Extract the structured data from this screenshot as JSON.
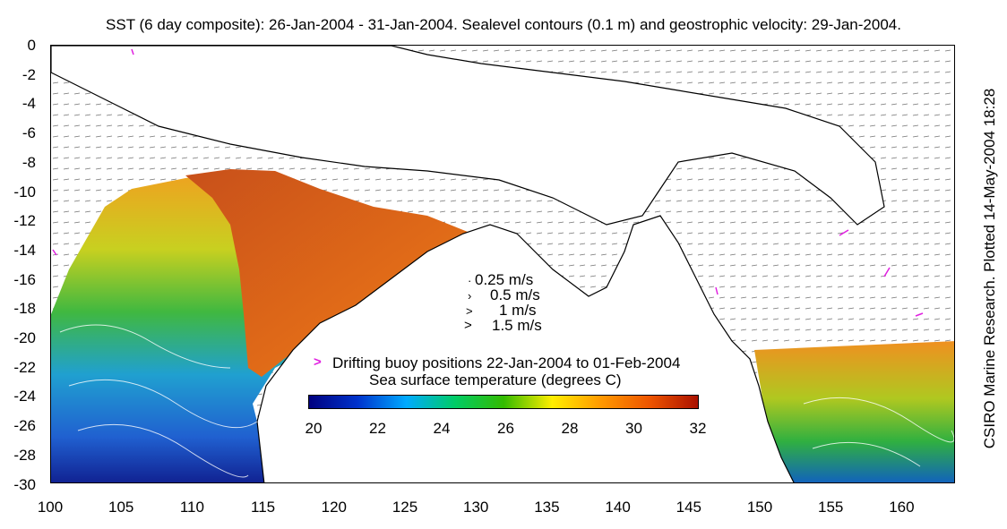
{
  "title": "SST (6 day composite): 26-Jan-2004 - 31-Jan-2004. Sealevel contours (0.1 m) and geostrophic velocity: 29-Jan-2004.",
  "credit": "CSIRO Marine Research. Plotted 14-May-2004 18:28",
  "axes": {
    "y_ticks": [
      "0",
      "-2",
      "-4",
      "-6",
      "-8",
      "-10",
      "-12",
      "-14",
      "-16",
      "-18",
      "-20",
      "-22",
      "-24",
      "-26",
      "-28",
      "-30"
    ],
    "x_ticks": [
      "100",
      "105",
      "110",
      "115",
      "120",
      "125",
      "130",
      "135",
      "140",
      "145",
      "150",
      "155",
      "160"
    ]
  },
  "velocity_legend": {
    "items": [
      "0.25 m/s",
      "0.5 m/s",
      "1 m/s",
      "1.5 m/s"
    ]
  },
  "buoy_legend": "Drifting buoy positions 22-Jan-2004 to 01-Feb-2004",
  "colorbar": {
    "label": "Sea surface temperature (degrees C)",
    "ticks": [
      "20",
      "22",
      "24",
      "26",
      "28",
      "30",
      "32"
    ],
    "colors": [
      "#00007f",
      "#0033cc",
      "#00aaff",
      "#00cc66",
      "#33bb00",
      "#ffee00",
      "#ff9900",
      "#ee5500",
      "#aa1100"
    ]
  },
  "colors": {
    "land": "#ffffff",
    "coast": "#000000",
    "buoy": "#e020e0"
  }
}
